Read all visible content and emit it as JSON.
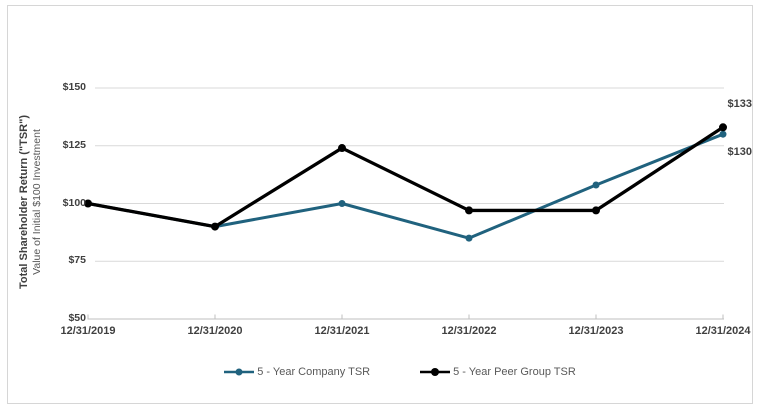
{
  "chart_data": {
    "type": "line",
    "y_axis_title_line1": "Total Shareholder Return (\"TSR\")",
    "y_axis_title_line2": "Value of Initial $100 Investment",
    "x": [
      "12/31/2019",
      "12/31/2020",
      "12/31/2021",
      "12/31/2022",
      "12/31/2023",
      "12/31/2024"
    ],
    "y_ticks": [
      {
        "value": 50,
        "label": "$50"
      },
      {
        "value": 75,
        "label": "$75"
      },
      {
        "value": 100,
        "label": "$100"
      },
      {
        "value": 125,
        "label": "$125"
      },
      {
        "value": 150,
        "label": "$150"
      }
    ],
    "ylim": [
      50,
      150
    ],
    "grid": "horizontal",
    "legend_position": "bottom",
    "series": [
      {
        "name": "5 - Year Company TSR",
        "color": "#20627e",
        "values": [
          100,
          90,
          100,
          85,
          108,
          130
        ],
        "end_label": "$130"
      },
      {
        "name": "5 - Year Peer Group TSR",
        "color": "#000000",
        "values": [
          100,
          90,
          124,
          97,
          97,
          133
        ],
        "end_label": "$133"
      }
    ],
    "colors": {
      "gridline": "#d9d9d9",
      "axis": "#bfbfbf",
      "tick_label": "#404040",
      "legend_text": "#595959"
    }
  }
}
